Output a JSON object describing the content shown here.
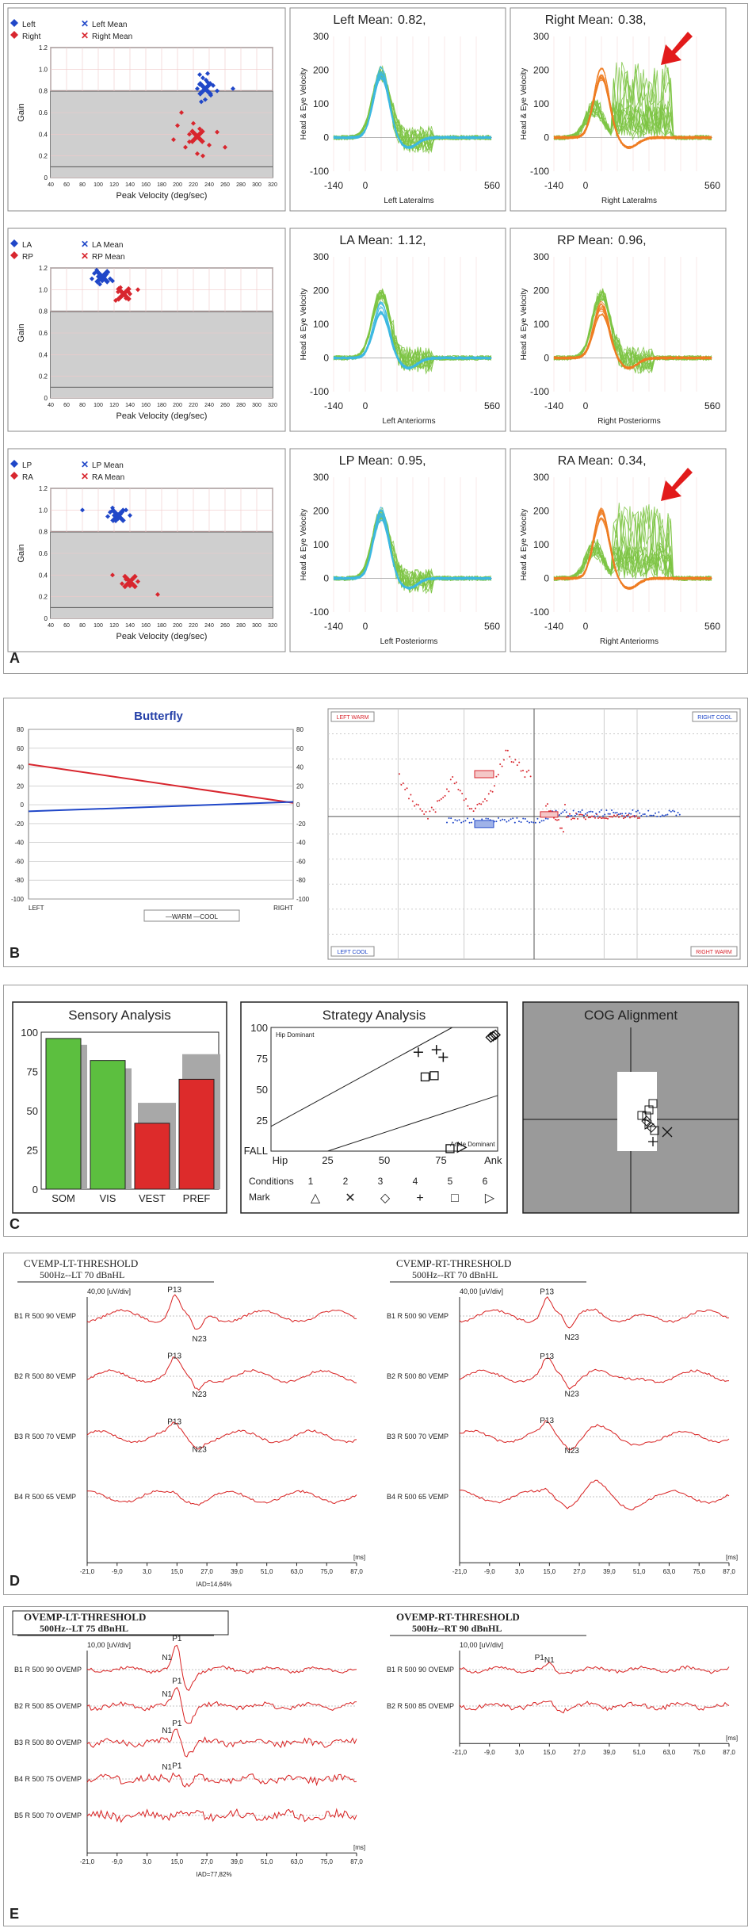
{
  "panels": {
    "A": {
      "label": "A",
      "rows": [
        {
          "scatter": {
            "legend": {
              "p1": "Left",
              "p2": "Right",
              "m1": "Left Mean",
              "m2": "Right Mean"
            },
            "ylabel": "Gain",
            "xlabel": "Peak Velocity (deg/sec)",
            "yticks": [
              "1.2",
              "1.0",
              "0.8",
              "0.6",
              "0.4",
              "0.2",
              "0"
            ],
            "xticks": [
              "40",
              "60",
              "80",
              "100",
              "120",
              "140",
              "160",
              "180",
              "200",
              "220",
              "240",
              "260",
              "280",
              "300",
              "320"
            ]
          },
          "left": {
            "title": "Left Mean:",
            "value": "0.82,",
            "xlabel": "Left Lateralms",
            "ylabel": "Head & Eye Velocity"
          },
          "right": {
            "title": "Right Mean:",
            "value": "0.38,",
            "xlabel": "Right Lateralms",
            "ylabel": "Head & Eye Velocity"
          }
        },
        {
          "scatter": {
            "legend": {
              "p1": "LA",
              "p2": "RP",
              "m1": "LA Mean",
              "m2": "RP Mean"
            },
            "ylabel": "Gain",
            "xlabel": "Peak Velocity (deg/sec)",
            "yticks": [
              "1.2",
              "1.0",
              "0.8",
              "0.6",
              "0.4",
              "0.2",
              "0"
            ],
            "xticks": [
              "40",
              "60",
              "80",
              "100",
              "120",
              "140",
              "160",
              "180",
              "200",
              "220",
              "240",
              "260",
              "280",
              "300",
              "320"
            ]
          },
          "left": {
            "title": "LA Mean:",
            "value": "1.12,",
            "xlabel": "Left Anteriorms",
            "ylabel": "Head & Eye Velocity"
          },
          "right": {
            "title": "RP Mean:",
            "value": "0.96,",
            "xlabel": "Right Posteriorms",
            "ylabel": "Head & Eye Velocity"
          }
        },
        {
          "scatter": {
            "legend": {
              "p1": "LP",
              "p2": "RA",
              "m1": "LP Mean",
              "m2": "RA Mean"
            },
            "ylabel": "Gain",
            "xlabel": "Peak Velocity (deg/sec)",
            "yticks": [
              "1.2",
              "1.0",
              "0.8",
              "0.6",
              "0.4",
              "0.2",
              "0"
            ],
            "xticks": [
              "40",
              "60",
              "80",
              "100",
              "120",
              "140",
              "160",
              "180",
              "200",
              "220",
              "240",
              "260",
              "280",
              "300",
              "320"
            ]
          },
          "left": {
            "title": "LP Mean:",
            "value": "0.95,",
            "xlabel": "Left Posteriorms",
            "ylabel": "Head & Eye Velocity"
          },
          "right": {
            "title": "RA Mean:",
            "value": "0.34,",
            "xlabel": "Right Anteriorms",
            "ylabel": "Head & Eye Velocity"
          }
        }
      ],
      "vel_yticks": [
        "300",
        "200",
        "100",
        "0",
        "-100"
      ],
      "vel_xticks": [
        "-140",
        "0",
        "560"
      ]
    },
    "B": {
      "label": "B",
      "butterfly": {
        "title": "Butterfly",
        "yticks": [
          "80",
          "60",
          "40",
          "20",
          "0",
          "-20",
          "-40",
          "-60",
          "-80",
          "-100"
        ],
        "xleft": "LEFT",
        "xright": "RIGHT",
        "legend": "—WARM —COOL"
      },
      "caloric": {
        "lw": "LEFT WARM",
        "rc": "RIGHT COOL",
        "lc": "LEFT COOL",
        "rw": "RIGHT WARM"
      }
    },
    "C": {
      "label": "C",
      "sensory": {
        "title": "Sensory Analysis",
        "yticks": [
          "100",
          "75",
          "50",
          "25",
          "0"
        ],
        "categories": [
          "SOM",
          "VIS",
          "VEST",
          "PREF"
        ]
      },
      "strategy": {
        "title": "Strategy Analysis",
        "hip_dom": "Hip Dominant",
        "ankle_dom": "Ankle Dominant",
        "yticks": [
          "100",
          "75",
          "50",
          "25"
        ],
        "fall": "FALL",
        "xticks": [
          "Hip",
          "25",
          "50",
          "75",
          "Ank"
        ],
        "cond_label": "Conditions",
        "conds": [
          "1",
          "2",
          "3",
          "4",
          "5",
          "6"
        ],
        "mark_label": "Mark",
        "marks": [
          "△",
          "✕",
          "◇",
          "+",
          "□",
          "▷"
        ]
      },
      "cog": {
        "title": "COG Alignment"
      }
    },
    "D": {
      "label": "D",
      "left": {
        "title": "CVEMP-LT-THRESHOLD",
        "subtitle": "500Hz--LT 70 dBnHL",
        "scale": "40,00 [uV/div]",
        "traces": [
          "B1 R 500 90 VEMP",
          "B2 R 500 80 VEMP",
          "B3 R 500 70 VEMP",
          "B4 R 500 65 VEMP"
        ],
        "peaks": [
          "P13",
          "N23",
          "P13",
          "N23",
          "P13",
          "N23"
        ]
      },
      "right": {
        "title": "CVEMP-RT-THRESHOLD",
        "subtitle": "500Hz--RT 70 dBnHL",
        "scale": "40,00 [uV/div]",
        "traces": [
          "B1 R 500 90 VEMP",
          "B2 R 500 80 VEMP",
          "B3 R 500 70 VEMP",
          "B4 R 500 65 VEMP"
        ],
        "peaks": [
          "P13",
          "N23",
          "P13",
          "N23",
          "P13",
          "N23"
        ]
      },
      "xticks": [
        "-21,0",
        "-9,0",
        "3,0",
        "15,0",
        "27,0",
        "39,0",
        "51,0",
        "63,0",
        "75,0",
        "87,0"
      ],
      "ms": "[ms]",
      "iad": "IAD=14,64%"
    },
    "E": {
      "label": "E",
      "left": {
        "title": "OVEMP-LT-THRESHOLD",
        "subtitle": "500Hz--LT 75 dBnHL",
        "scale": "10,00 [uV/div]",
        "traces": [
          "B1 R 500 90 OVEMP",
          "B2 R 500 85 OVEMP",
          "B3 R 500 80 OVEMP",
          "B4 R 500 75 OVEMP",
          "B5 R 500 70 OVEMP"
        ],
        "peaks": [
          "P1",
          "N1",
          "P1",
          "N1",
          "P1",
          "N1",
          "P1",
          "N1"
        ]
      },
      "right": {
        "title": "OVEMP-RT-THRESHOLD",
        "subtitle": "500Hz--RT 90 dBnHL",
        "scale": "10,00 [uV/div]",
        "traces": [
          "B1 R 500 90 OVEMP",
          "B2 R 500 85 OVEMP"
        ],
        "peaks": [
          "N1",
          "P1"
        ]
      },
      "xticks": [
        "-21,0",
        "-9,0",
        "3,0",
        "15,0",
        "27,0",
        "39,0",
        "51,0",
        "63,0",
        "75,0",
        "87,0"
      ],
      "ms": "[ms]",
      "iad": "IAD=77,82%"
    }
  },
  "colors": {
    "blue": "#2047c8",
    "red": "#d8262e",
    "cyan": "#3db8e0",
    "green": "#7cc443",
    "orange": "#ef7d22",
    "grey_region": "#cfcfcf",
    "trace_red": "#d82020",
    "arrow": "#e21b1b",
    "bar_green": "#5cbf3f",
    "bar_red": "#dd2b2b",
    "bar_grey": "#a8a8a8",
    "cog_grey": "#9a9a9a"
  },
  "chart_data": [
    {
      "type": "scatter",
      "panel": "A-row1",
      "xlabel": "Peak Velocity (deg/sec)",
      "ylabel": "Gain",
      "xlim": [
        40,
        320
      ],
      "ylim": [
        0,
        1.2
      ],
      "series": [
        {
          "name": "Left",
          "points": [
            [
              228,
              0.95
            ],
            [
              232,
              0.92
            ],
            [
              238,
              0.88
            ],
            [
              225,
              0.82
            ],
            [
              240,
              0.78
            ],
            [
              235,
              0.72
            ],
            [
              230,
              0.7
            ],
            [
              245,
              0.85
            ],
            [
              250,
              0.8
            ],
            [
              236,
              0.9
            ],
            [
              242,
              0.76
            ],
            [
              270,
              0.82
            ],
            [
              228,
              0.86
            ],
            [
              238,
              0.96
            ]
          ]
        },
        {
          "name": "Right",
          "points": [
            [
              205,
              0.6
            ],
            [
              215,
              0.4
            ],
            [
              225,
              0.22
            ],
            [
              195,
              0.35
            ],
            [
              210,
              0.28
            ],
            [
              232,
              0.2
            ],
            [
              250,
              0.42
            ],
            [
              260,
              0.28
            ],
            [
              220,
              0.5
            ],
            [
              228,
              0.45
            ],
            [
              240,
              0.3
            ],
            [
              200,
              0.48
            ],
            [
              215,
              0.33
            ]
          ]
        }
      ],
      "means": [
        {
          "name": "Left Mean",
          "x": 235,
          "y": 0.82
        },
        {
          "name": "Right Mean",
          "x": 225,
          "y": 0.38
        }
      ]
    },
    {
      "type": "scatter",
      "panel": "A-row2",
      "xlabel": "Peak Velocity (deg/sec)",
      "ylabel": "Gain",
      "xlim": [
        40,
        320
      ],
      "ylim": [
        0,
        1.2
      ],
      "series": [
        {
          "name": "LA",
          "points": [
            [
              95,
              1.15
            ],
            [
              100,
              1.12
            ],
            [
              105,
              1.08
            ],
            [
              110,
              1.14
            ],
            [
              115,
              1.1
            ],
            [
              98,
              1.18
            ],
            [
              102,
              1.05
            ],
            [
              108,
              1.12
            ],
            [
              112,
              1.16
            ],
            [
              118,
              1.08
            ],
            [
              92,
              1.1
            ]
          ]
        },
        {
          "name": "RP",
          "points": [
            [
              125,
              0.98
            ],
            [
              130,
              0.94
            ],
            [
              135,
              0.92
            ],
            [
              128,
              1.02
            ],
            [
              140,
              0.96
            ],
            [
              122,
              0.9
            ],
            [
              150,
              1.0
            ],
            [
              138,
              0.98
            ]
          ]
        }
      ],
      "means": [
        {
          "name": "LA Mean",
          "x": 105,
          "y": 1.12
        },
        {
          "name": "RP Mean",
          "x": 132,
          "y": 0.96
        }
      ]
    },
    {
      "type": "scatter",
      "panel": "A-row3",
      "xlabel": "Peak Velocity (deg/sec)",
      "ylabel": "Gain",
      "xlim": [
        40,
        320
      ],
      "ylim": [
        0,
        1.2
      ],
      "series": [
        {
          "name": "LP",
          "points": [
            [
              80,
              1.0
            ],
            [
              115,
              0.98
            ],
            [
              120,
              0.95
            ],
            [
              125,
              0.92
            ],
            [
              118,
              1.02
            ],
            [
              128,
              0.96
            ],
            [
              122,
              0.9
            ],
            [
              130,
              0.98
            ],
            [
              140,
              0.95
            ],
            [
              112,
              0.94
            ],
            [
              135,
              1.0
            ]
          ]
        },
        {
          "name": "RA",
          "points": [
            [
              118,
              0.4
            ],
            [
              130,
              0.32
            ],
            [
              140,
              0.3
            ],
            [
              135,
              0.36
            ],
            [
              150,
              0.34
            ],
            [
              175,
              0.22
            ]
          ]
        }
      ],
      "means": [
        {
          "name": "LP Mean",
          "x": 125,
          "y": 0.95
        },
        {
          "name": "RA Mean",
          "x": 140,
          "y": 0.34
        }
      ]
    },
    {
      "type": "line",
      "panel": "B-butterfly",
      "title": "Butterfly",
      "categories": [
        "LEFT",
        "RIGHT"
      ],
      "ylim": [
        -100,
        80
      ],
      "series": [
        {
          "name": "WARM",
          "values": [
            43,
            2
          ]
        },
        {
          "name": "COOL",
          "values": [
            -7,
            3
          ]
        }
      ]
    },
    {
      "type": "bar",
      "panel": "C-sensory",
      "title": "Sensory Analysis",
      "categories": [
        "SOM",
        "VIS",
        "VEST",
        "PREF"
      ],
      "ylim": [
        0,
        100
      ],
      "series": [
        {
          "name": "",
          "values": [
            96,
            82,
            42,
            70
          ]
        }
      ],
      "normal": [
        92,
        77,
        55,
        86
      ]
    },
    {
      "type": "scatter",
      "panel": "C-strategy",
      "title": "Strategy Analysis",
      "xlabel": "",
      "ylabel": "",
      "xlim": [
        0,
        100
      ],
      "ylim": [
        0,
        100
      ],
      "series": [
        {
          "name": "4",
          "marker": "+",
          "points": [
            [
              65,
              80
            ],
            [
              73,
              82
            ],
            [
              76,
              76
            ]
          ]
        },
        {
          "name": "5",
          "marker": "square",
          "points": [
            [
              68,
              60
            ],
            [
              72,
              61
            ],
            [
              79,
              2
            ]
          ]
        },
        {
          "name": "3",
          "marker": "diamond",
          "points": [
            [
              98,
              93
            ],
            [
              99,
              94
            ],
            [
              97,
              92
            ]
          ]
        },
        {
          "name": "6",
          "marker": "triangle-right",
          "points": [
            [
              84,
              3
            ]
          ]
        }
      ]
    }
  ]
}
